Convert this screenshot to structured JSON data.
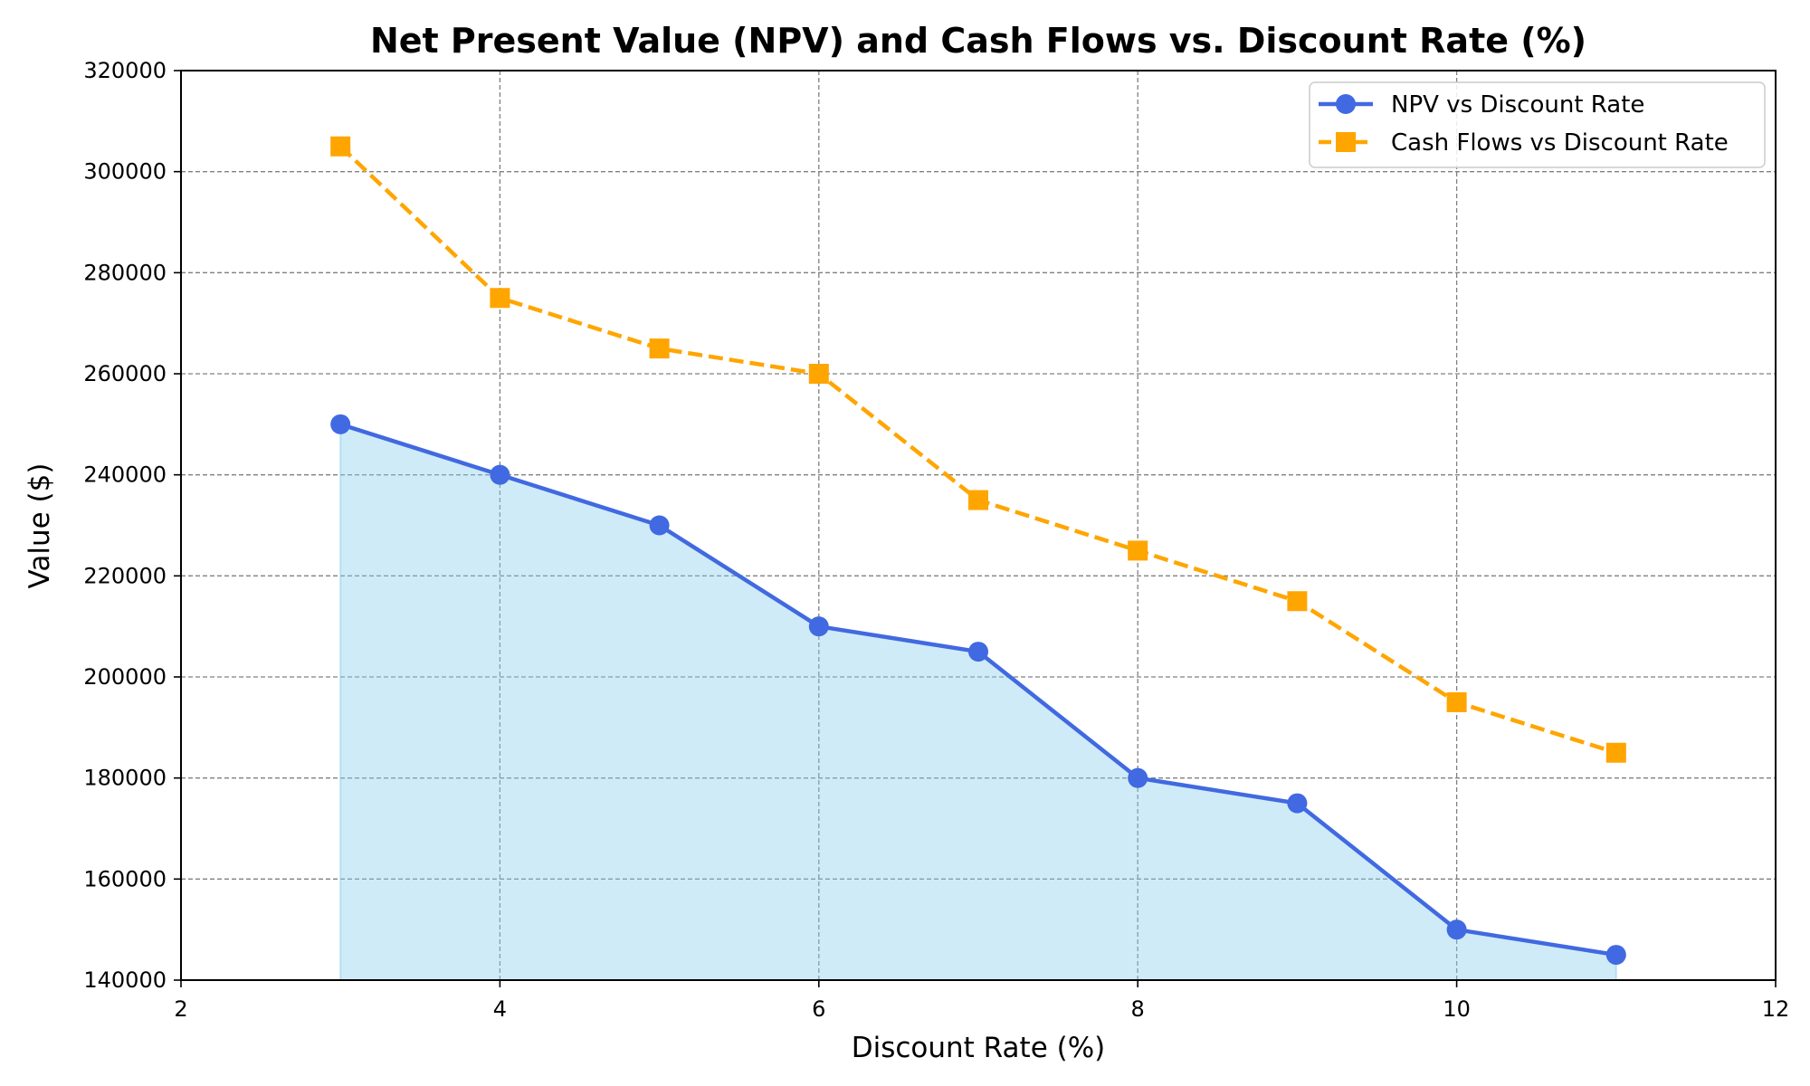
{
  "chart_data": {
    "type": "line",
    "title": "Net Present Value (NPV) and Cash Flows vs. Discount Rate (%)",
    "xlabel": "Discount Rate (%)",
    "ylabel": "Value ($)",
    "xlim": [
      2,
      12
    ],
    "ylim": [
      140000,
      320000
    ],
    "xticks": [
      "2",
      "4",
      "6",
      "8",
      "10",
      "12"
    ],
    "yticks": [
      "140000",
      "160000",
      "180000",
      "200000",
      "220000",
      "240000",
      "260000",
      "280000",
      "300000",
      "320000"
    ],
    "grid": true,
    "legend_position": "top-right",
    "series": [
      {
        "name": "NPV vs Discount Rate",
        "x": [
          3,
          4,
          5,
          6,
          7,
          8,
          9,
          10,
          11
        ],
        "values": [
          250000,
          240000,
          230000,
          210000,
          205000,
          180000,
          175000,
          150000,
          145000
        ],
        "color": "#4169e1",
        "line_style": "solid",
        "marker": "circle",
        "fill_color": "#87ceeb",
        "filled": true
      },
      {
        "name": "Cash Flows vs Discount Rate",
        "x": [
          3,
          4,
          5,
          6,
          7,
          8,
          9,
          10,
          11
        ],
        "values": [
          305000,
          275000,
          265000,
          260000,
          235000,
          225000,
          215000,
          195000,
          185000
        ],
        "color": "#ffa500",
        "line_style": "dashed",
        "marker": "square",
        "filled": false
      }
    ]
  }
}
